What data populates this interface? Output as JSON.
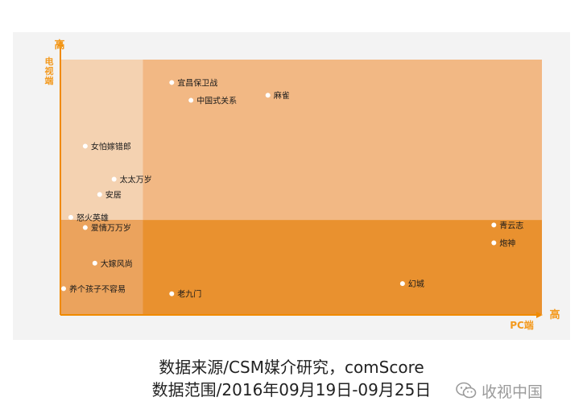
{
  "chart_data": {
    "type": "scatter",
    "title": "",
    "xlabel": "PC端",
    "ylabel": "电视端",
    "x_high_label": "高",
    "y_high_label": "高",
    "xlim": [
      0,
      100
    ],
    "ylim": [
      0,
      100
    ],
    "x_split": 17,
    "y_split": 37,
    "grid": false,
    "colors": {
      "axis": "#f08a00",
      "axis_label": "#f39a1f",
      "plot_upper": "#f2b884",
      "plot_lower": "#e9912f",
      "quadrant_low_low": "#eba35d",
      "quadrant_low_high": "#f4d2b1",
      "point": "#ffffff",
      "text": "#1a1a1a"
    },
    "points": [
      {
        "label": "宜昌保卫战",
        "x": 23,
        "y": 91
      },
      {
        "label": "中国式关系",
        "x": 27,
        "y": 84
      },
      {
        "label": "麻雀",
        "x": 43,
        "y": 86
      },
      {
        "label": "女怕嫁错郎",
        "x": 5,
        "y": 66
      },
      {
        "label": "太太万岁",
        "x": 11,
        "y": 53
      },
      {
        "label": "安居",
        "x": 8,
        "y": 47
      },
      {
        "label": "怒火英雄",
        "x": 2,
        "y": 38
      },
      {
        "label": "爱情万万岁",
        "x": 5,
        "y": 34
      },
      {
        "label": "大嫁风尚",
        "x": 7,
        "y": 20
      },
      {
        "label": "养个孩子不容易",
        "x": 0.5,
        "y": 10
      },
      {
        "label": "老九门",
        "x": 23,
        "y": 8
      },
      {
        "label": "幻城",
        "x": 71,
        "y": 12
      },
      {
        "label": "青云志",
        "x": 90,
        "y": 35
      },
      {
        "label": "炮神",
        "x": 90,
        "y": 28
      }
    ]
  },
  "caption": {
    "line1": "数据来源/CSM媒介研究，comScore",
    "line2": "数据范围/2016年09月19日-09月25日"
  },
  "watermark": {
    "text": "收视中国",
    "icon": "wechat-icon"
  }
}
